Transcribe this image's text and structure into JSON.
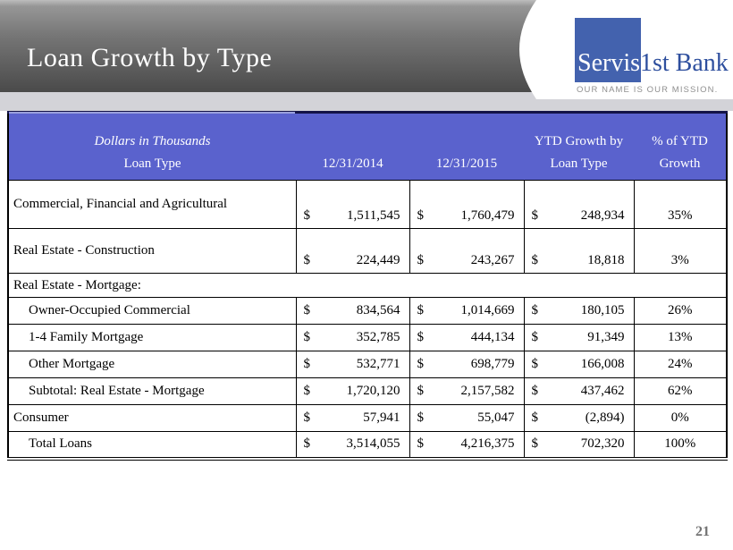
{
  "slide": {
    "title": "Loan Growth by Type",
    "page_number": "21"
  },
  "logo": {
    "brand_primary": "Servis",
    "brand_secondary": "1st Bank",
    "tagline": "OUR NAME IS OUR MISSION.",
    "square_color": "#4362ae",
    "brand_text_color": "#2e4f9e"
  },
  "colors": {
    "table_header_background": "#5a62cd",
    "banner_gradient_top": "#bdbdbd",
    "banner_gradient_bottom": "#4a4a4a",
    "strip": "#d3d3d8"
  },
  "table": {
    "currency": "$",
    "header": {
      "col1_line1": "Dollars in Thousands",
      "col1_line2": "Loan Type",
      "col2": "12/31/2014",
      "col3": "12/31/2015",
      "col4_line1": "YTD Growth by",
      "col4_line2": "Loan Type",
      "col5_line1": "% of YTD",
      "col5_line2": "Growth"
    },
    "rows": [
      {
        "label": "Commercial, Financial and Agricultural",
        "indent": false,
        "size": "tall1",
        "v2014": "1,511,545",
        "v2015": "1,760,479",
        "growth": "248,934",
        "pct": "35%"
      },
      {
        "label": "Real Estate - Construction",
        "indent": false,
        "size": "tall2",
        "v2014": "224,449",
        "v2015": "243,267",
        "growth": "18,818",
        "pct": "3%"
      },
      {
        "label": "Real Estate - Mortgage:",
        "section": true
      },
      {
        "label": "Owner-Occupied Commercial",
        "indent": true,
        "size": "normal",
        "v2014": "834,564",
        "v2015": "1,014,669",
        "growth": "180,105",
        "pct": "26%"
      },
      {
        "label": "1-4 Family Mortgage",
        "indent": true,
        "size": "normal",
        "v2014": "352,785",
        "v2015": "444,134",
        "growth": "91,349",
        "pct": "13%"
      },
      {
        "label": "Other Mortgage",
        "indent": true,
        "size": "normal",
        "v2014": "532,771",
        "v2015": "698,779",
        "growth": "166,008",
        "pct": "24%"
      },
      {
        "label": "Subtotal: Real Estate - Mortgage",
        "indent": true,
        "size": "normal",
        "v2014": "1,720,120",
        "v2015": "2,157,582",
        "growth": "437,462",
        "pct": "62%"
      },
      {
        "label": "Consumer",
        "indent": false,
        "size": "normal",
        "v2014": "57,941",
        "v2015": "55,047",
        "growth": "(2,894)",
        "pct": "0%"
      },
      {
        "label": "Total Loans",
        "indent": true,
        "size": "normal",
        "v2014": "3,514,055",
        "v2015": "4,216,375",
        "growth": "702,320",
        "pct": "100%"
      }
    ]
  },
  "chart_data": {
    "type": "table",
    "title": "Loan Growth by Type",
    "units": "Dollars in Thousands",
    "columns": [
      "Loan Type",
      "12/31/2014",
      "12/31/2015",
      "YTD Growth by Loan Type",
      "% of YTD Growth"
    ],
    "rows": [
      [
        "Commercial, Financial and Agricultural",
        1511545,
        1760479,
        248934,
        "35%"
      ],
      [
        "Real Estate - Construction",
        224449,
        243267,
        18818,
        "3%"
      ],
      [
        "Owner-Occupied Commercial",
        834564,
        1014669,
        180105,
        "26%"
      ],
      [
        "1-4 Family Mortgage",
        352785,
        444134,
        91349,
        "13%"
      ],
      [
        "Other Mortgage",
        532771,
        698779,
        166008,
        "24%"
      ],
      [
        "Subtotal: Real Estate - Mortgage",
        1720120,
        2157582,
        437462,
        "62%"
      ],
      [
        "Consumer",
        57941,
        55047,
        -2894,
        "0%"
      ],
      [
        "Total Loans",
        3514055,
        4216375,
        702320,
        "100%"
      ]
    ]
  }
}
